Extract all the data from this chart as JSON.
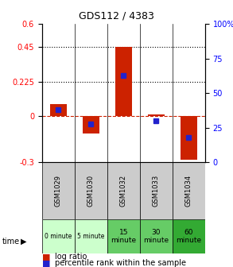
{
  "title": "GDS112 / 4383",
  "samples": [
    "GSM1029",
    "GSM1030",
    "GSM1032",
    "GSM1033",
    "GSM1034"
  ],
  "time_labels": [
    "0 minute",
    "5 minute",
    "15\nminute",
    "30\nminute",
    "60\nminute"
  ],
  "time_colors": [
    "#ccffcc",
    "#ccffcc",
    "#66cc66",
    "#66cc66",
    "#33aa33"
  ],
  "log_ratios": [
    0.08,
    -0.11,
    0.45,
    0.01,
    -0.28
  ],
  "percentile_ranks": [
    0.38,
    0.28,
    0.63,
    0.3,
    0.18
  ],
  "ylim_left": [
    -0.3,
    0.6
  ],
  "ylim_right": [
    0,
    100
  ],
  "yticks_left": [
    -0.3,
    0,
    0.225,
    0.45,
    0.6
  ],
  "yticks_right": [
    0,
    25,
    50,
    75,
    100
  ],
  "hlines": [
    0.225,
    0.45
  ],
  "bar_color": "#cc2200",
  "dot_color": "#2222cc",
  "zero_line_color": "#cc2200",
  "background_color": "#ffffff",
  "plot_bg": "#ffffff",
  "sample_row_color": "#cccccc",
  "time_label_fontsize_small": 5.5,
  "time_label_fontsize_large": 6.5,
  "bar_width": 0.5
}
